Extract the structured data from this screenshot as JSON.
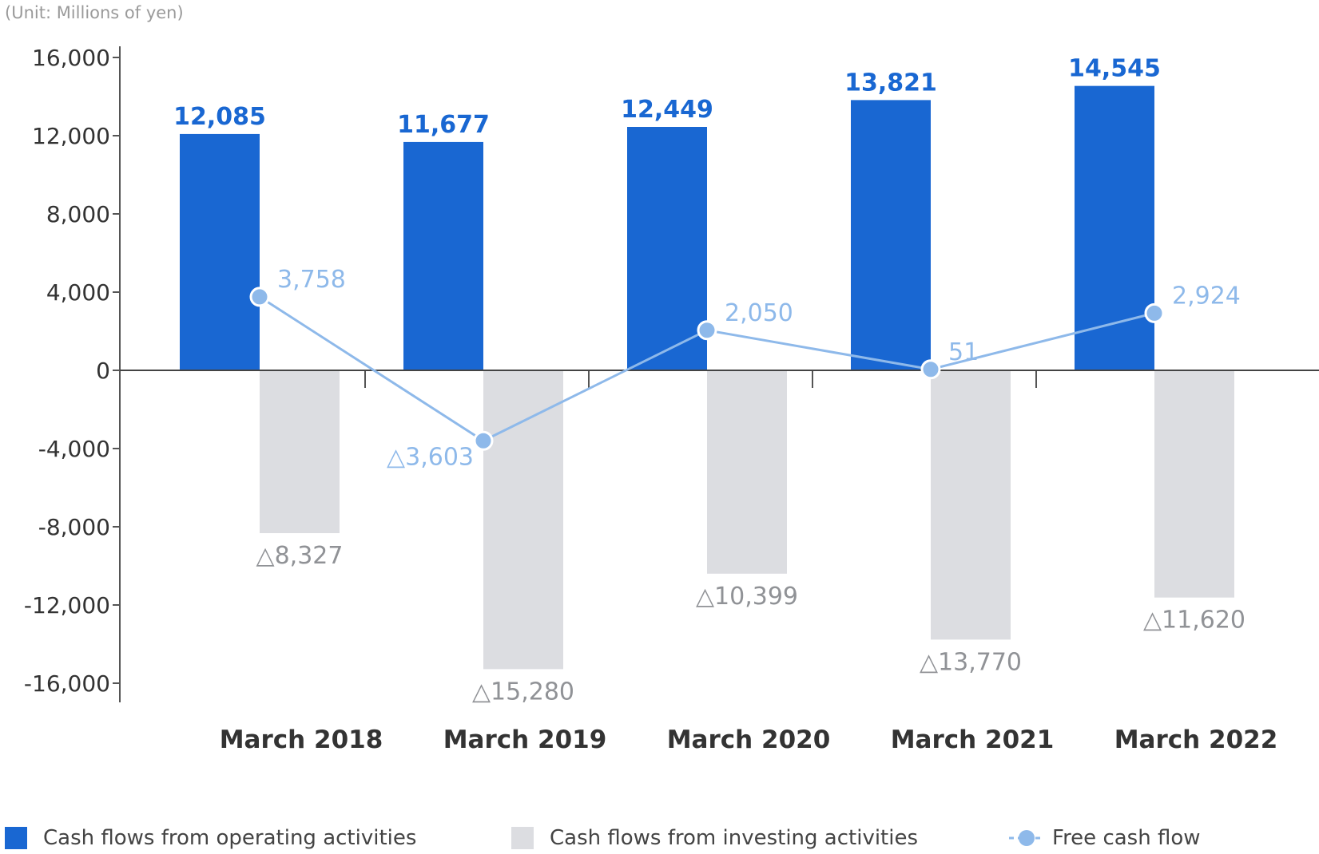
{
  "unit_label": "(Unit: Millions of yen)",
  "chart_data": {
    "type": "bar",
    "categories": [
      "March  2018",
      "March  2019",
      "March  2020",
      "March  2021",
      "March  2022"
    ],
    "ylim": [
      -16000,
      16000
    ],
    "yticks": [
      16000,
      12000,
      8000,
      4000,
      0,
      -4000,
      -8000,
      -12000,
      -16000
    ],
    "ytick_labels": [
      "16,000",
      "12,000",
      "8,000",
      "4,000",
      "0",
      "-4,000",
      "-8,000",
      "-12,000",
      "-16,000"
    ],
    "series": [
      {
        "name": "Cash flows from operating activities",
        "kind": "bar",
        "color": "#1967d2",
        "values": [
          12085,
          11677,
          12449,
          13821,
          14545
        ],
        "labels": [
          "12,085",
          "11,677",
          "12,449",
          "13,821",
          "14,545"
        ]
      },
      {
        "name": "Cash flows from investing activities",
        "kind": "bar",
        "color": "#dcdde1",
        "label_color": "#909296",
        "values": [
          -8327,
          -15280,
          -10399,
          -13770,
          -11620
        ],
        "labels": [
          "△8,327",
          "△15,280",
          "△10,399",
          "△13,770",
          "△11,620"
        ]
      },
      {
        "name": "Free cash flow",
        "kind": "line",
        "color": "#8eb9ea",
        "values": [
          3758,
          -3603,
          2050,
          51,
          2924
        ],
        "labels": [
          "3,758",
          "△3,603",
          "2,050",
          "51",
          "2,924"
        ]
      }
    ]
  }
}
